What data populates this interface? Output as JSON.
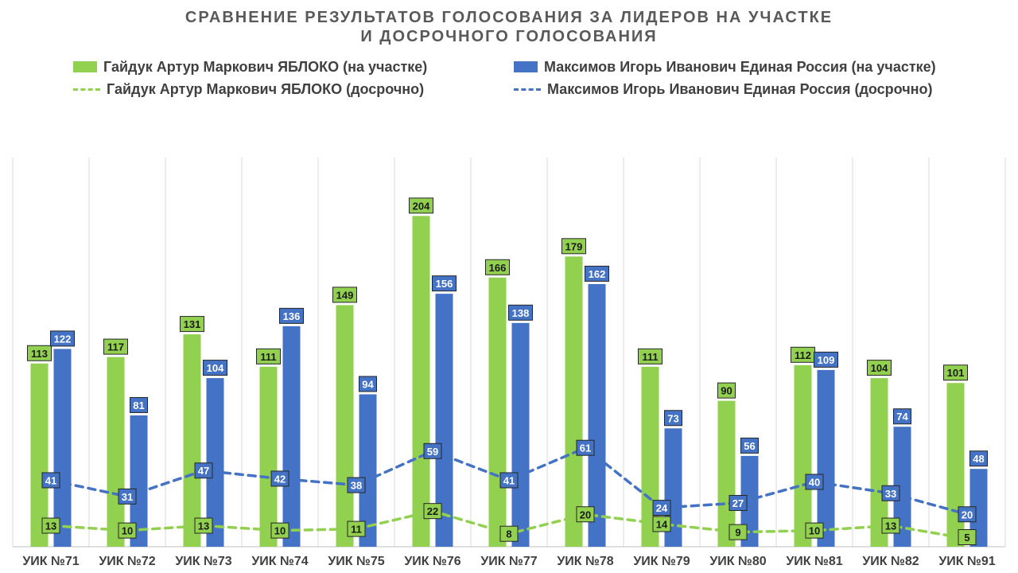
{
  "colors": {
    "green": "#92D050",
    "blue": "#4472C4",
    "grid": "#D9D9D9",
    "axis": "#BFBFBF",
    "title": "#595959",
    "label_text": "#404040"
  },
  "chart_data": {
    "type": "bar",
    "title_lines": [
      "СРАВНЕНИЕ РЕЗУЛЬТАТОВ ГОЛОСОВАНИЯ ЗА ЛИДЕРОВ НА УЧАСТКЕ",
      "И ДОСРОЧНОГО ГОЛОСОВАНИЯ"
    ],
    "categories": [
      "УИК №71",
      "УИК №72",
      "УИК №73",
      "УИК №74",
      "УИК №75",
      "УИК №76",
      "УИК №77",
      "УИК №78",
      "УИК №79",
      "УИК №80",
      "УИК №81",
      "УИК №82",
      "УИК №91"
    ],
    "ylim": [
      0,
      240
    ],
    "grid": "vertical",
    "legend_position": "top",
    "series": [
      {
        "name": "Гайдук Артур Маркович ЯБЛОКО (на участке)",
        "kind": "bar",
        "color": "#92D050",
        "values": [
          113,
          117,
          131,
          111,
          149,
          204,
          166,
          179,
          111,
          90,
          112,
          104,
          101
        ]
      },
      {
        "name": "Максимов Игорь Иванович Единая Россия (на участке)",
        "kind": "bar",
        "color": "#4472C4",
        "values": [
          122,
          81,
          104,
          136,
          94,
          156,
          138,
          162,
          73,
          56,
          109,
          74,
          48
        ]
      },
      {
        "name": "Гайдук Артур Маркович ЯБЛОКО (досрочно)",
        "kind": "dashed-line",
        "color": "#92D050",
        "values": [
          13,
          10,
          13,
          10,
          11,
          22,
          8,
          20,
          14,
          9,
          10,
          13,
          5
        ]
      },
      {
        "name": "Максимов Игорь Иванович Единая Россия (досрочно)",
        "kind": "dashed-line",
        "color": "#4472C4",
        "values": [
          41,
          31,
          47,
          42,
          38,
          59,
          41,
          61,
          24,
          27,
          40,
          33,
          20
        ]
      }
    ]
  }
}
